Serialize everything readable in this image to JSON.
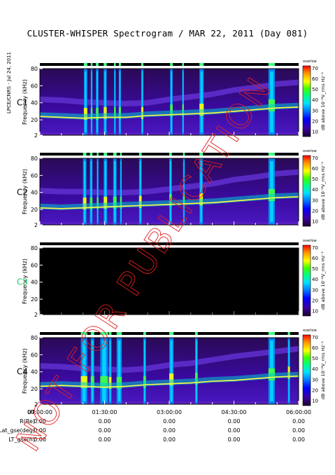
{
  "chart_data": {
    "type": "heatmap",
    "title": "CLUSTER-WHISPER Spectrogram / MAR 22, 2011 (Day 081)",
    "credit": "LPCE/CNRS - Jul 24, 2011",
    "ylabel": "Frequency (kHz)",
    "ylim": [
      2,
      80
    ],
    "yticks": [
      2,
      20,
      40,
      60,
      80
    ],
    "x_ticks": [
      "00:00:00",
      "01:30:00",
      "03:00:00",
      "04:30:00",
      "06:00:00"
    ],
    "xlim_hours": [
      0,
      6
    ],
    "colorbar": {
      "label": "dB above 10⁻⁸V_rms Hz⁻¹",
      "tag": "overlow",
      "ticks": [
        10,
        20,
        30,
        40,
        50,
        60,
        70
      ],
      "range": [
        5,
        72
      ],
      "colors": [
        "#1a0030",
        "#3a00a0",
        "#0000ff",
        "#0080ff",
        "#00e0ff",
        "#00ff80",
        "#40ff00",
        "#ffff00",
        "#ff9000",
        "#ff0000"
      ]
    },
    "panels": [
      {
        "label": "C1",
        "label_color": "#000000",
        "has_data": true,
        "plasma_line": [
          [
            0,
            24
          ],
          [
            0.5,
            23
          ],
          [
            1,
            22
          ],
          [
            1.5,
            23
          ],
          [
            2,
            23
          ],
          [
            2.5,
            25
          ],
          [
            3,
            26
          ],
          [
            3.5,
            27
          ],
          [
            4,
            28
          ],
          [
            4.5,
            30
          ],
          [
            5,
            32
          ],
          [
            5.5,
            34
          ],
          [
            6,
            35
          ]
        ],
        "upper_band": [
          [
            0,
            44
          ],
          [
            0.5,
            43
          ],
          [
            1,
            41
          ],
          [
            1.5,
            40
          ],
          [
            2,
            39
          ],
          [
            2.5,
            40
          ],
          [
            3,
            44
          ],
          [
            3.5,
            47
          ],
          [
            4,
            50
          ],
          [
            4.5,
            55
          ],
          [
            5,
            58
          ],
          [
            5.5,
            62
          ],
          [
            6,
            64
          ]
        ],
        "bursts": [
          [
            1.02,
            1.1
          ],
          [
            1.18,
            1.22
          ],
          [
            1.3,
            1.36
          ],
          [
            1.48,
            1.55
          ],
          [
            1.72,
            1.76
          ],
          [
            1.83,
            1.88
          ],
          [
            2.35,
            2.4
          ],
          [
            3.02,
            3.08
          ],
          [
            3.3,
            3.34
          ],
          [
            3.7,
            3.8
          ],
          [
            5.3,
            5.45
          ]
        ]
      },
      {
        "label": "C2",
        "label_color": "#000000",
        "has_data": true,
        "plasma_line": [
          [
            0,
            22
          ],
          [
            0.5,
            21
          ],
          [
            1,
            22
          ],
          [
            1.5,
            23
          ],
          [
            2,
            24
          ],
          [
            2.5,
            25
          ],
          [
            3,
            26
          ],
          [
            3.5,
            27
          ],
          [
            4,
            28
          ],
          [
            4.5,
            30
          ],
          [
            5,
            32
          ],
          [
            5.5,
            34
          ],
          [
            6,
            35
          ]
        ],
        "upper_band": [
          [
            0,
            42
          ],
          [
            0.5,
            41
          ],
          [
            1,
            41
          ],
          [
            1.5,
            40
          ],
          [
            2,
            40
          ],
          [
            2.5,
            41
          ],
          [
            3,
            44
          ],
          [
            3.5,
            47
          ],
          [
            4,
            50
          ],
          [
            4.5,
            55
          ],
          [
            5,
            58
          ],
          [
            5.5,
            62
          ],
          [
            6,
            64
          ]
        ],
        "bursts": [
          [
            1.0,
            1.08
          ],
          [
            1.16,
            1.22
          ],
          [
            1.32,
            1.36
          ],
          [
            1.48,
            1.56
          ],
          [
            1.7,
            1.78
          ],
          [
            1.86,
            1.9
          ],
          [
            2.3,
            2.36
          ],
          [
            3.0,
            3.06
          ],
          [
            3.32,
            3.36
          ],
          [
            3.7,
            3.78
          ],
          [
            5.3,
            5.45
          ]
        ]
      },
      {
        "label": "C3",
        "label_color": "#20d060",
        "has_data": false
      },
      {
        "label": "C4",
        "label_color": "#000000",
        "has_data": true,
        "plasma_line": [
          [
            0,
            23
          ],
          [
            0.5,
            24
          ],
          [
            1,
            23
          ],
          [
            1.5,
            22
          ],
          [
            2,
            23
          ],
          [
            2.5,
            25
          ],
          [
            3,
            26
          ],
          [
            3.5,
            27
          ],
          [
            4,
            29
          ],
          [
            4.5,
            30
          ],
          [
            5,
            32
          ],
          [
            5.5,
            34
          ],
          [
            6,
            35
          ]
        ],
        "upper_band": [
          [
            0,
            47
          ],
          [
            0.5,
            46
          ],
          [
            1,
            44
          ],
          [
            1.5,
            43
          ],
          [
            2,
            42
          ],
          [
            2.5,
            44
          ],
          [
            3,
            48
          ],
          [
            3.5,
            50
          ],
          [
            4,
            54
          ],
          [
            4.5,
            58
          ],
          [
            5,
            61
          ],
          [
            5.5,
            64
          ],
          [
            6,
            67
          ]
        ],
        "bursts": [
          [
            0.95,
            1.1
          ],
          [
            1.18,
            1.26
          ],
          [
            1.4,
            1.58
          ],
          [
            1.6,
            1.66
          ],
          [
            1.78,
            1.9
          ],
          [
            2.4,
            2.46
          ],
          [
            3.0,
            3.1
          ],
          [
            3.6,
            3.66
          ],
          [
            5.3,
            5.45
          ],
          [
            5.75,
            5.8
          ]
        ]
      }
    ],
    "orbit_table": {
      "rows": [
        {
          "label": "UT",
          "values": [
            "00:00:00",
            "01:30:00",
            "03:00:00",
            "04:30:00",
            "06:00:00"
          ]
        },
        {
          "label": "R(Re)",
          "values": [
            "0.00",
            "0.00",
            "0.00",
            "0.00",
            "0.00"
          ]
        },
        {
          "label": "Lat_gse(deg)",
          "values": [
            "0.00",
            "0.00",
            "0.00",
            "0.00",
            "0.00"
          ]
        },
        {
          "label": "LT_gse(h)",
          "values": [
            "0.00",
            "0.00",
            "0.00",
            "0.00",
            "0.00"
          ]
        }
      ]
    },
    "watermark": "NOT FOR PUBLICATION"
  }
}
